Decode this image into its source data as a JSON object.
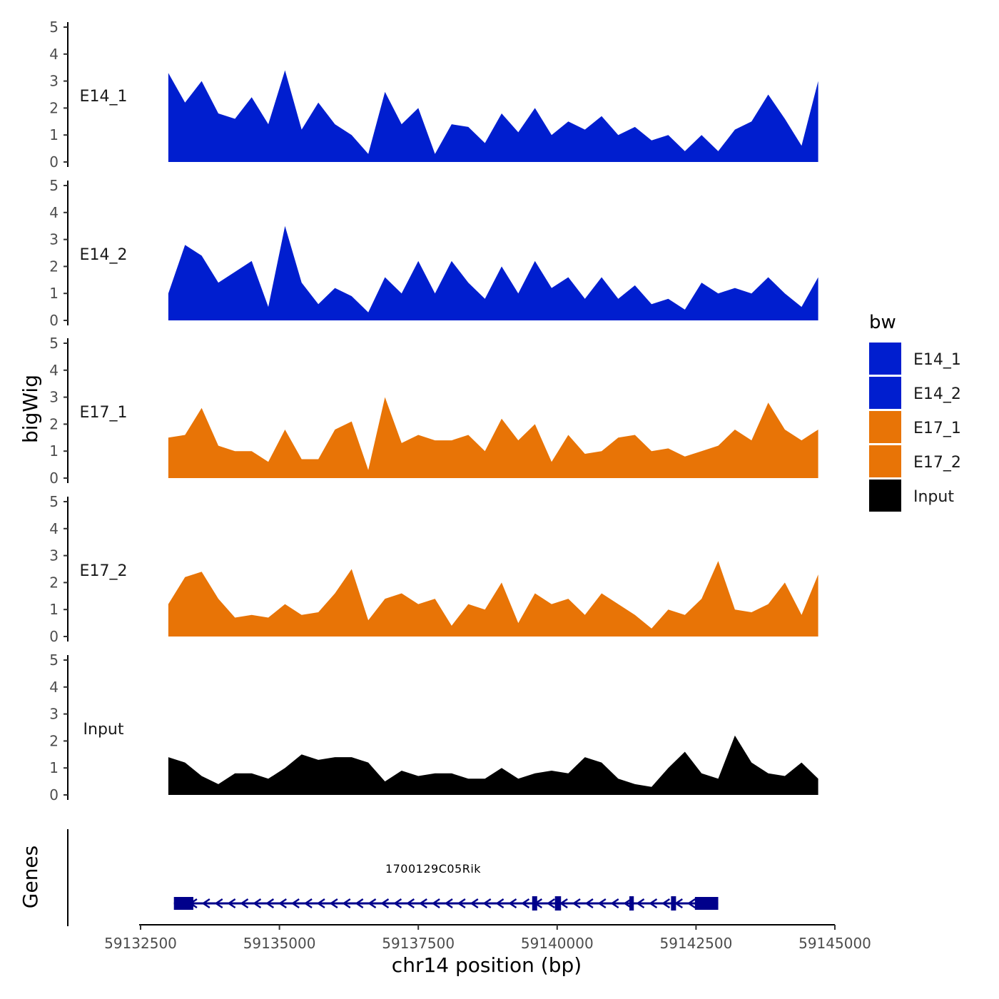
{
  "chart_data": {
    "type": "area",
    "title": "",
    "ylabel": "bigWig",
    "xlabel": "chr14 position (bp)",
    "genes_label": "Genes",
    "ylim": [
      0,
      5
    ],
    "yticks": [
      "0",
      "1",
      "2",
      "3",
      "4",
      "5"
    ],
    "xlim": [
      59132500,
      59145000
    ],
    "xticks": [
      59132500,
      59135000,
      59137500,
      59140000,
      59142500,
      59145000
    ],
    "xtick_labels": [
      "59132500",
      "59135000",
      "59137500",
      "59140000",
      "59142500",
      "59145000"
    ],
    "x": [
      59133000,
      59133300,
      59133600,
      59133900,
      59134200,
      59134500,
      59134800,
      59135100,
      59135400,
      59135700,
      59136000,
      59136300,
      59136600,
      59136900,
      59137200,
      59137500,
      59137800,
      59138100,
      59138400,
      59138700,
      59139000,
      59139300,
      59139600,
      59139900,
      59140200,
      59140500,
      59140800,
      59141100,
      59141400,
      59141700,
      59142000,
      59142300,
      59142600,
      59142900,
      59143200,
      59143500,
      59143800,
      59144100,
      59144400,
      59144700
    ],
    "legend_title": "bw",
    "legend": [
      {
        "label": "E14_1",
        "color": "#001ECF"
      },
      {
        "label": "E14_2",
        "color": "#001ECF"
      },
      {
        "label": "E17_1",
        "color": "#E87406"
      },
      {
        "label": "E17_2",
        "color": "#E87406"
      },
      {
        "label": "Input",
        "color": "#000000"
      }
    ],
    "series": [
      {
        "name": "E14_1",
        "color": "#001ECF",
        "values": [
          3.3,
          2.2,
          3.0,
          1.8,
          1.6,
          2.4,
          1.4,
          3.4,
          1.2,
          2.2,
          1.4,
          1.0,
          0.3,
          2.6,
          1.4,
          2.0,
          0.3,
          1.4,
          1.3,
          0.7,
          1.8,
          1.1,
          2.0,
          1.0,
          1.5,
          1.2,
          1.7,
          1.0,
          1.3,
          0.8,
          1.0,
          0.4,
          1.0,
          0.4,
          1.2,
          1.5,
          2.5,
          1.6,
          0.6,
          3.0
        ]
      },
      {
        "name": "E14_2",
        "color": "#001ECF",
        "values": [
          1.0,
          2.8,
          2.4,
          1.4,
          1.8,
          2.2,
          0.5,
          3.5,
          1.4,
          0.6,
          1.2,
          0.9,
          0.3,
          1.6,
          1.0,
          2.2,
          1.0,
          2.2,
          1.4,
          0.8,
          2.0,
          1.0,
          2.2,
          1.2,
          1.6,
          0.8,
          1.6,
          0.8,
          1.3,
          0.6,
          0.8,
          0.4,
          1.4,
          1.0,
          1.2,
          1.0,
          1.6,
          1.0,
          0.5,
          1.6
        ]
      },
      {
        "name": "E17_1",
        "color": "#E87406",
        "values": [
          1.5,
          1.6,
          2.6,
          1.2,
          1.0,
          1.0,
          0.6,
          1.8,
          0.7,
          0.7,
          1.8,
          2.1,
          0.3,
          3.0,
          1.3,
          1.6,
          1.4,
          1.4,
          1.6,
          1.0,
          2.2,
          1.4,
          2.0,
          0.6,
          1.6,
          0.9,
          1.0,
          1.5,
          1.6,
          1.0,
          1.1,
          0.8,
          1.0,
          1.2,
          1.8,
          1.4,
          2.8,
          1.8,
          1.4,
          1.8
        ]
      },
      {
        "name": "E17_2",
        "color": "#E87406",
        "values": [
          1.2,
          2.2,
          2.4,
          1.4,
          0.7,
          0.8,
          0.7,
          1.2,
          0.8,
          0.9,
          1.6,
          2.5,
          0.6,
          1.4,
          1.6,
          1.2,
          1.4,
          0.4,
          1.2,
          1.0,
          2.0,
          0.5,
          1.6,
          1.2,
          1.4,
          0.8,
          1.6,
          1.2,
          0.8,
          0.3,
          1.0,
          0.8,
          1.4,
          2.8,
          1.0,
          0.9,
          1.2,
          2.0,
          0.8,
          2.3
        ]
      },
      {
        "name": "Input",
        "color": "#000000",
        "values": [
          1.4,
          1.2,
          0.7,
          0.4,
          0.8,
          0.8,
          0.6,
          1.0,
          1.5,
          1.3,
          1.4,
          1.4,
          1.2,
          0.5,
          0.9,
          0.7,
          0.8,
          0.8,
          0.6,
          0.6,
          1.0,
          0.6,
          0.8,
          0.9,
          0.8,
          1.4,
          1.2,
          0.6,
          0.4,
          0.3,
          1.0,
          1.6,
          0.8,
          0.6,
          2.2,
          1.2,
          0.8,
          0.7,
          1.2,
          0.6
        ]
      }
    ],
    "gene": {
      "name": "1700129C05Rik",
      "start": 59133100,
      "end": 59142900,
      "strand": "-",
      "color": "#00008B",
      "exons": [
        {
          "start": 59133100,
          "end": 59133450
        },
        {
          "start": 59139550,
          "end": 59139640
        },
        {
          "start": 59139960,
          "end": 59140070
        },
        {
          "start": 59141300,
          "end": 59141380
        },
        {
          "start": 59142050,
          "end": 59142140
        },
        {
          "start": 59142480,
          "end": 59142900
        }
      ]
    }
  }
}
